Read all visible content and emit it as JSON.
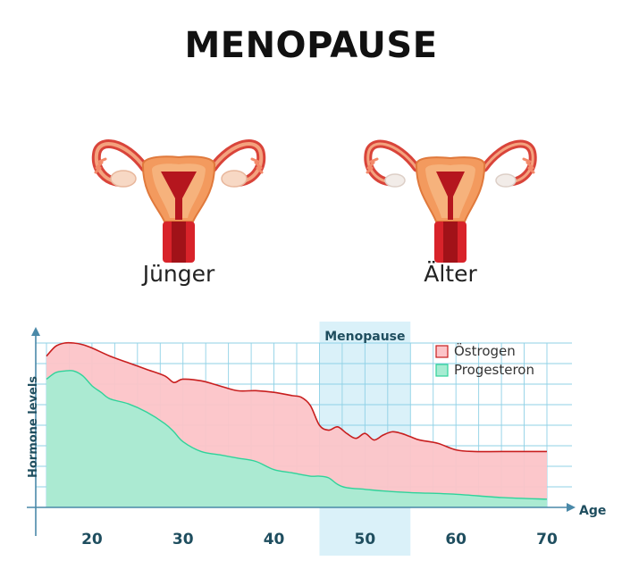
{
  "title": "MENOPAUSE",
  "panels": [
    {
      "label": "Jünger",
      "illustration": "uterus-young-icon"
    },
    {
      "label": "Älter",
      "illustration": "uterus-old-icon"
    }
  ],
  "colors": {
    "estrogen_fill": "#fcc4c8",
    "estrogen_line": "#c81e1e",
    "progesteron_fill": "#a6ecd2",
    "progesteron_line": "#2fd39a",
    "grid": "#8fd1e6",
    "axis": "#4a89a8",
    "menopause_band": "#daf1f9",
    "label_dark": "#1f4e5f"
  },
  "chart_data": {
    "type": "area",
    "title": "",
    "xlabel": "Age",
    "ylabel": "Hormone levels",
    "xlim": [
      15,
      70
    ],
    "ylim": [
      0,
      100
    ],
    "x_ticks": [
      20,
      30,
      40,
      50,
      60,
      70
    ],
    "grid": true,
    "legend_position": "top-right",
    "band": {
      "label": "Menopause",
      "from": 45,
      "to": 55
    },
    "series": [
      {
        "name": "Östrogen",
        "x": [
          15,
          16,
          17,
          18,
          19,
          20,
          22,
          24,
          26,
          28,
          29,
          30,
          32,
          34,
          36,
          38,
          40,
          42,
          43,
          44,
          45,
          46,
          47,
          48,
          49,
          50,
          51,
          52,
          53,
          54,
          55,
          56,
          58,
          60,
          62,
          65,
          70
        ],
        "values": [
          92,
          98,
          100,
          100,
          99,
          97,
          92,
          88,
          84,
          80,
          76,
          78,
          77,
          74,
          71,
          71,
          70,
          68,
          67,
          62,
          50,
          47,
          49,
          45,
          42,
          45,
          41,
          44,
          46,
          45,
          43,
          41,
          39,
          35,
          34,
          34,
          34
        ]
      },
      {
        "name": "Progesteron",
        "x": [
          15,
          16,
          17,
          18,
          19,
          20,
          21,
          22,
          24,
          26,
          28,
          29,
          30,
          32,
          34,
          36,
          38,
          40,
          42,
          44,
          45,
          46,
          47,
          48,
          50,
          52,
          55,
          60,
          65,
          70
        ],
        "values": [
          78,
          82,
          83,
          83,
          80,
          74,
          70,
          66,
          63,
          58,
          51,
          46,
          40,
          34,
          32,
          30,
          28,
          23,
          21,
          19,
          19,
          18,
          14,
          12,
          11,
          10,
          9,
          8,
          6,
          5
        ]
      }
    ]
  }
}
